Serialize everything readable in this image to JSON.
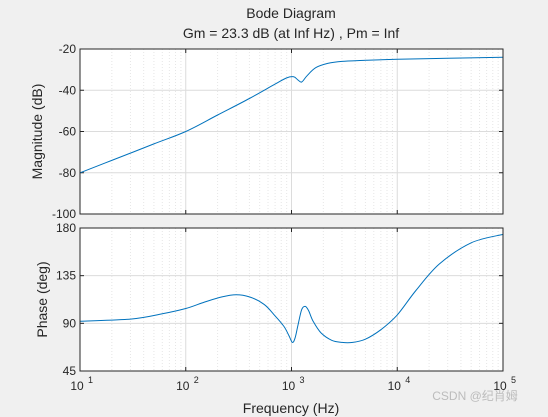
{
  "chart_data": {
    "type": "line",
    "title": "Bode Diagram",
    "subtitle": "Gm = 23.3 dB (at Inf Hz) ,  Pm = Inf",
    "xlabel": "Frequency  (Hz)",
    "xscale": "log",
    "xlim": [
      10,
      100000
    ],
    "x_tick_base": "10",
    "x_tick_exponents": [
      "1",
      "2",
      "3",
      "4",
      "5"
    ],
    "grid": true,
    "line_color": "#0072bd",
    "panels": [
      {
        "name": "magnitude",
        "ylabel": "Magnitude (dB)",
        "ylim": [
          -100,
          -20
        ],
        "yticks": [
          "-20",
          "-40",
          "-60",
          "-80",
          "-100"
        ],
        "x": [
          10,
          20,
          50,
          100,
          200,
          400,
          700,
          900,
          1050,
          1150,
          1250,
          1400,
          1700,
          2200,
          3000,
          5000,
          10000,
          30000,
          100000
        ],
        "y": [
          -80,
          -74,
          -66,
          -60,
          -52,
          -44,
          -37,
          -34,
          -33.5,
          -35,
          -36,
          -33,
          -29,
          -27,
          -26,
          -25.5,
          -25,
          -24.5,
          -24
        ]
      },
      {
        "name": "phase",
        "ylabel": "Phase (deg)",
        "ylim": [
          45,
          180
        ],
        "yticks": [
          "180",
          "135",
          "90",
          "45"
        ],
        "x": [
          10,
          30,
          60,
          100,
          150,
          220,
          300,
          400,
          550,
          700,
          850,
          950,
          1020,
          1080,
          1150,
          1250,
          1350,
          1450,
          1600,
          1900,
          2400,
          3000,
          3800,
          5000,
          7000,
          10000,
          15000,
          25000,
          50000,
          100000
        ],
        "y": [
          92,
          94,
          99,
          104,
          110,
          115,
          117,
          115,
          108,
          97,
          87,
          78,
          72,
          76,
          88,
          103,
          106,
          102,
          92,
          81,
          74,
          72,
          72,
          75,
          84,
          98,
          121,
          146,
          166,
          174
        ]
      }
    ]
  },
  "watermark": "CSDN @纪肖姆"
}
